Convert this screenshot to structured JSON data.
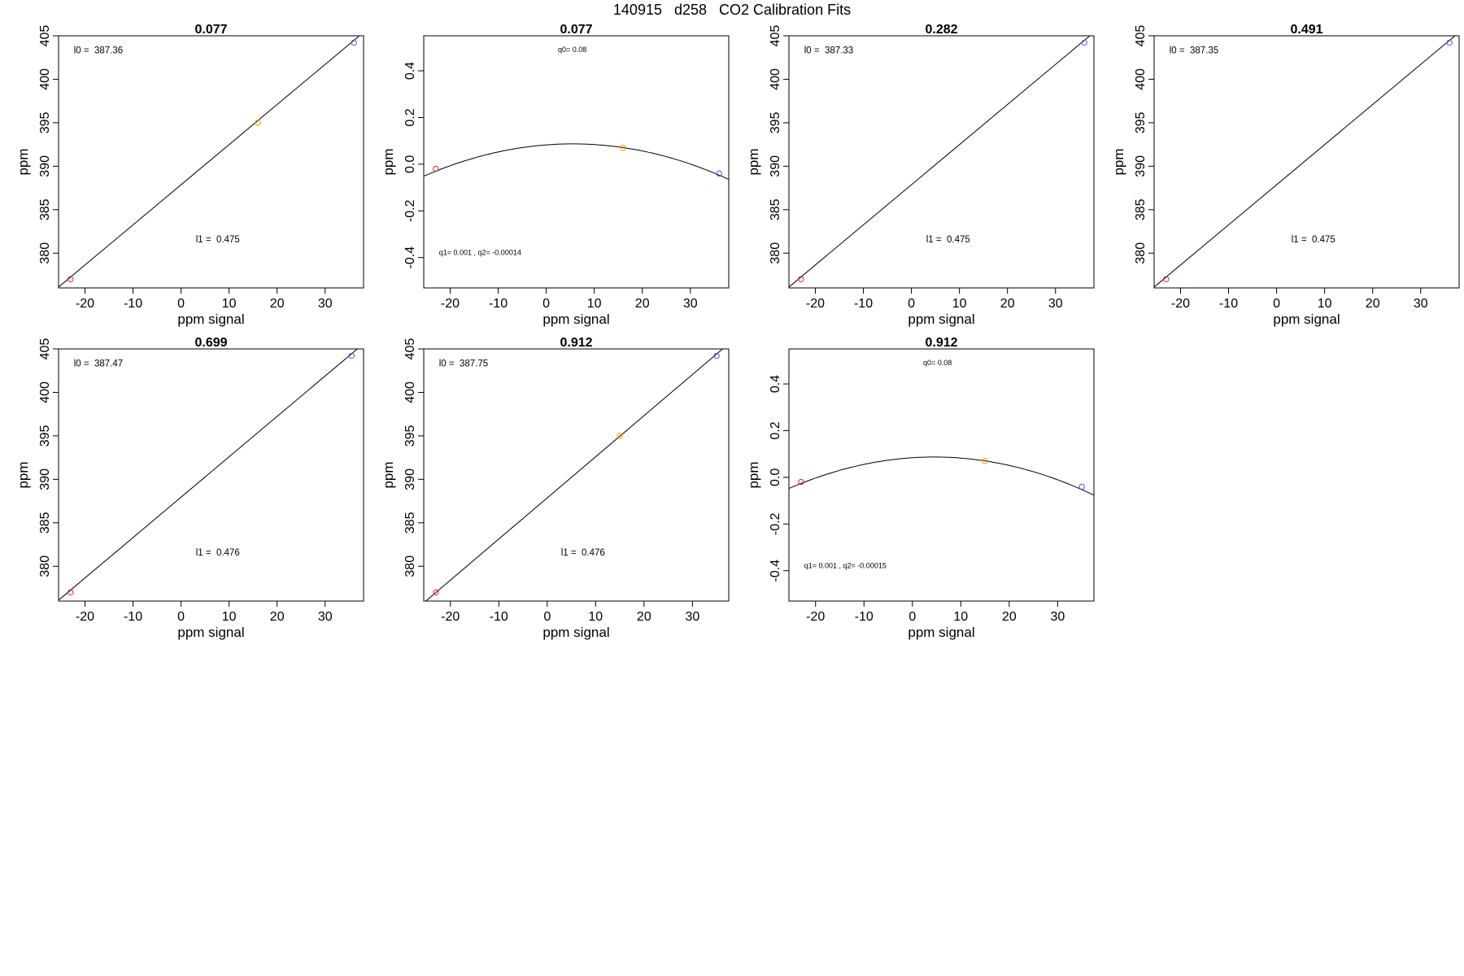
{
  "figure": {
    "title": "140915   d258   CO2 Calibration Fits"
  },
  "chart_data": [
    {
      "type": "scatter",
      "fit": "linear",
      "title": "0.077",
      "xlabel": "ppm signal",
      "ylabel": "ppm",
      "xlim": [
        -25.5,
        38
      ],
      "ylim": [
        376,
        405
      ],
      "xticks": [
        -20,
        -10,
        0,
        10,
        20,
        30
      ],
      "yticks": [
        380,
        385,
        390,
        395,
        400,
        405
      ],
      "points": [
        {
          "x": -23,
          "y": 377,
          "color": "#d62728"
        },
        {
          "x": 16,
          "y": 395,
          "color": "#ff9900"
        },
        {
          "x": 36,
          "y": 404.2,
          "color": "#7b3fc4"
        }
      ],
      "line": {
        "x": [
          -25.5,
          38
        ],
        "y": [
          376.1,
          405.4
        ]
      },
      "annotations": [
        "l0 =  387.36",
        "l1 =  0.475"
      ]
    },
    {
      "type": "scatter",
      "fit": "quadratic",
      "title": "0.077",
      "xlabel": "ppm signal",
      "ylabel": "ppm",
      "xlim": [
        -25.5,
        38
      ],
      "ylim": [
        -0.53,
        0.55
      ],
      "xticks": [
        -20,
        -10,
        0,
        10,
        20,
        30
      ],
      "yticks": [
        -0.4,
        -0.2,
        0.0,
        0.2,
        0.4
      ],
      "ytick_labels": [
        "-0.4",
        "-0.2",
        "0.0",
        "0.2",
        "0.4"
      ],
      "points": [
        {
          "x": -23,
          "y": -0.02,
          "color": "#d62728"
        },
        {
          "x": 16,
          "y": 0.07,
          "color": "#ff9900"
        },
        {
          "x": 36,
          "y": -0.04,
          "color": "#7b3fc4"
        }
      ],
      "curve": {
        "vertex_x": 5.5,
        "vertex_y": 0.087,
        "a": -0.000144
      },
      "annotations": [
        "q0= 0.08",
        "q1= 0.001 , q2= -0.00014"
      ]
    },
    {
      "type": "scatter",
      "fit": "linear",
      "title": "0.282",
      "xlabel": "ppm signal",
      "ylabel": "ppm",
      "xlim": [
        -25.5,
        38
      ],
      "ylim": [
        376,
        405
      ],
      "xticks": [
        -20,
        -10,
        0,
        10,
        20,
        30
      ],
      "yticks": [
        380,
        385,
        390,
        395,
        400,
        405
      ],
      "points": [
        {
          "x": -23,
          "y": 377,
          "color": "#d62728"
        },
        {
          "x": 36,
          "y": 404.2,
          "color": "#7b3fc4"
        }
      ],
      "line": {
        "x": [
          -25.5,
          38
        ],
        "y": [
          376.1,
          405.4
        ]
      },
      "annotations": [
        "l0 =  387.33",
        "l1 =  0.475"
      ]
    },
    {
      "type": "scatter",
      "fit": "linear",
      "title": "0.491",
      "xlabel": "ppm signal",
      "ylabel": "ppm",
      "xlim": [
        -25.5,
        38
      ],
      "ylim": [
        376,
        405
      ],
      "xticks": [
        -20,
        -10,
        0,
        10,
        20,
        30
      ],
      "yticks": [
        380,
        385,
        390,
        395,
        400,
        405
      ],
      "points": [
        {
          "x": -23,
          "y": 377,
          "color": "#d62728"
        },
        {
          "x": 36,
          "y": 404.2,
          "color": "#7b3fc4"
        }
      ],
      "line": {
        "x": [
          -25.5,
          38
        ],
        "y": [
          376.1,
          405.4
        ]
      },
      "annotations": [
        "l0 =  387.35",
        "l1 =  0.475"
      ]
    },
    {
      "type": "scatter",
      "fit": "linear",
      "title": "0.699",
      "xlabel": "ppm signal",
      "ylabel": "ppm",
      "xlim": [
        -25.5,
        38
      ],
      "ylim": [
        376,
        405
      ],
      "xticks": [
        -20,
        -10,
        0,
        10,
        20,
        30
      ],
      "yticks": [
        380,
        385,
        390,
        395,
        400,
        405
      ],
      "points": [
        {
          "x": -23,
          "y": 377,
          "color": "#d62728"
        },
        {
          "x": 35.5,
          "y": 404.2,
          "color": "#7b3fc4"
        }
      ],
      "line": {
        "x": [
          -25.5,
          38
        ],
        "y": [
          376.1,
          405.6
        ]
      },
      "annotations": [
        "l0 =  387.47",
        "l1 =  0.476"
      ]
    },
    {
      "type": "scatter",
      "fit": "linear",
      "title": "0.912",
      "xlabel": "ppm signal",
      "ylabel": "ppm",
      "xlim": [
        -25.5,
        37.5
      ],
      "ylim": [
        376,
        405
      ],
      "xticks": [
        -20,
        -10,
        0,
        10,
        20,
        30
      ],
      "yticks": [
        380,
        385,
        390,
        395,
        400,
        405
      ],
      "points": [
        {
          "x": -23,
          "y": 377,
          "color": "#d62728"
        },
        {
          "x": 15,
          "y": 395,
          "color": "#ff9900"
        },
        {
          "x": 35,
          "y": 404.2,
          "color": "#7b3fc4"
        }
      ],
      "line": {
        "x": [
          -25.5,
          37.5
        ],
        "y": [
          375.8,
          405.6
        ]
      },
      "annotations": [
        "l0 =  387.75",
        "l1 =  0.476"
      ]
    },
    {
      "type": "scatter",
      "fit": "quadratic",
      "title": "0.912",
      "xlabel": "ppm signal",
      "ylabel": "ppm",
      "xlim": [
        -25.5,
        37.5
      ],
      "ylim": [
        -0.53,
        0.55
      ],
      "xticks": [
        -20,
        -10,
        0,
        10,
        20,
        30
      ],
      "yticks": [
        -0.4,
        -0.2,
        0.0,
        0.2,
        0.4
      ],
      "ytick_labels": [
        "-0.4",
        "-0.2",
        "0.0",
        "0.2",
        "0.4"
      ],
      "points": [
        {
          "x": -23,
          "y": -0.02,
          "color": "#d62728"
        },
        {
          "x": 15,
          "y": 0.07,
          "color": "#ff9900"
        },
        {
          "x": 35,
          "y": -0.04,
          "color": "#7b3fc4"
        }
      ],
      "curve": {
        "vertex_x": 4.5,
        "vertex_y": 0.087,
        "a": -0.00015
      },
      "annotations": [
        "q0= 0.08",
        "q1= 0.001 , q2= -0.00015"
      ]
    }
  ]
}
